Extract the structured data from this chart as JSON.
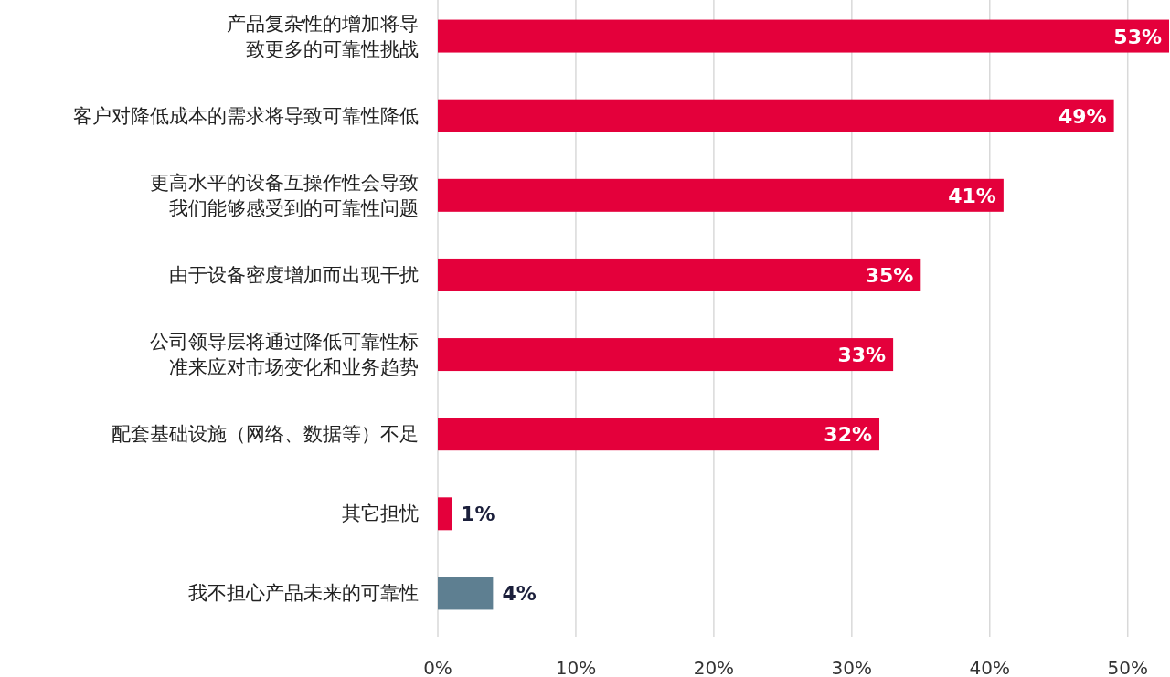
{
  "chart_data": {
    "type": "bar",
    "orientation": "horizontal",
    "categories": [
      "产品复杂性的增加将导致更多的可靠性挑战",
      "客户对降低成本的需求将导致可靠性降低",
      "更高水平的设备互操作性会导致我们能够感受到的可靠性问题",
      "由于设备密度增加而出现干扰",
      "公司领导层将通过降低可靠性标准来应对市场变化和业务趋势",
      "配套基础设施（网络、数据等）不足",
      "其它担忧",
      "我不担心产品未来的可靠性"
    ],
    "values": [
      53,
      49,
      41,
      35,
      33,
      32,
      1,
      4
    ],
    "colors": [
      "#e4003b",
      "#e4003b",
      "#e4003b",
      "#e4003b",
      "#e4003b",
      "#e4003b",
      "#e4003b",
      "#5e7f91"
    ],
    "value_labels": [
      "53%",
      "49%",
      "41%",
      "35%",
      "33%",
      "32%",
      "1%",
      "4%"
    ],
    "xlim": [
      0,
      53
    ],
    "xticks": [
      {
        "value": 0,
        "label": "0%"
      },
      {
        "value": 10,
        "label": "10%"
      },
      {
        "value": 20,
        "label": "20%"
      },
      {
        "value": 30,
        "label": "30%"
      },
      {
        "value": 40,
        "label": "40%"
      },
      {
        "value": 50,
        "label": "50%"
      }
    ],
    "grid": "x"
  }
}
